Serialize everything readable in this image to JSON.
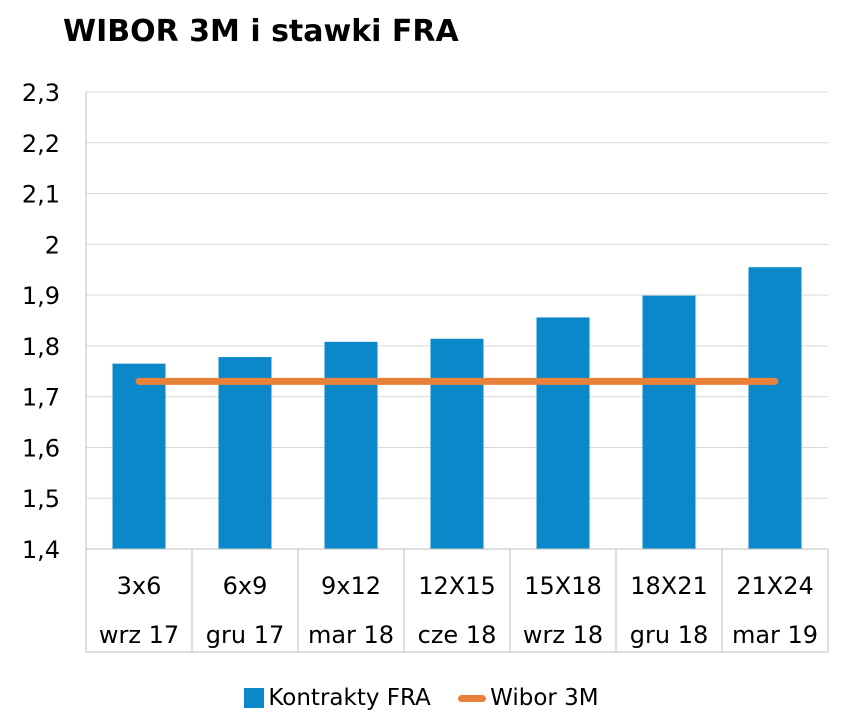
{
  "chart_data": {
    "type": "bar",
    "title": "WIBOR 3M i stawki FRA",
    "categories": [
      "3x6",
      "6x9",
      "9x12",
      "12X15",
      "15X18",
      "18X21",
      "21X24"
    ],
    "sub_categories": [
      "wrz 17",
      "gru 17",
      "mar 18",
      "cze 18",
      "wrz 18",
      "gru 18",
      "mar 19"
    ],
    "series": [
      {
        "name": "Kontrakty FRA",
        "type": "bar",
        "color": "#0a88c9",
        "values": [
          1.765,
          1.778,
          1.808,
          1.814,
          1.856,
          1.899,
          1.955
        ]
      },
      {
        "name": "Wibor 3M",
        "type": "line",
        "color": "#e8823b",
        "values": [
          1.73,
          1.73,
          1.73,
          1.73,
          1.73,
          1.73,
          1.73
        ]
      }
    ],
    "y_ticks": [
      "1,4",
      "1,5",
      "1,6",
      "1,7",
      "1,8",
      "1,9",
      "2",
      "2,1",
      "2,2",
      "2,3"
    ],
    "ylim": [
      1.4,
      2.3
    ],
    "grid": true,
    "legend": "bottom"
  }
}
